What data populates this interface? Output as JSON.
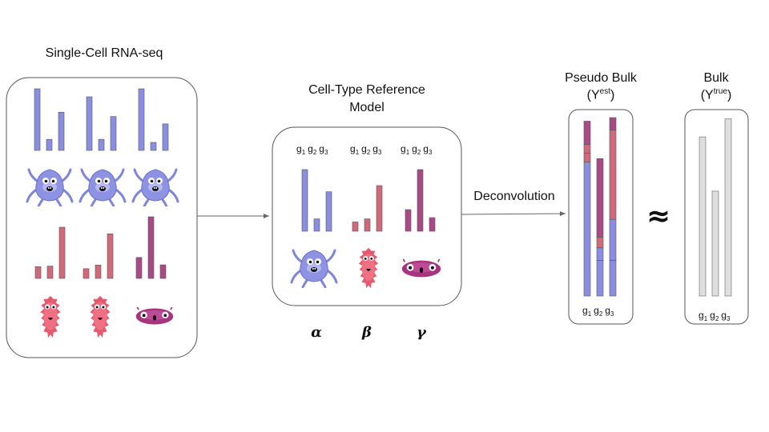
{
  "single_cell": {
    "title": "Single-Cell RNA-seq",
    "rows": [
      {
        "cell_type": "alpha",
        "profiles": [
          [
            1.0,
            0.18,
            0.62
          ],
          [
            0.87,
            0.18,
            0.55
          ],
          [
            1.0,
            0.13,
            0.43
          ]
        ]
      },
      {
        "cell_type": "beta",
        "profiles": [
          [
            0.23,
            0.24,
            1.0
          ],
          [
            0.19,
            0.26,
            0.87
          ]
        ]
      },
      {
        "cell_type": "gamma",
        "profiles": [
          [
            0.34,
            1.0,
            0.22
          ]
        ]
      }
    ],
    "cells": [
      "blue-monster",
      "blue-monster",
      "blue-monster",
      "red-monster",
      "red-monster",
      "purple-monster"
    ]
  },
  "reference": {
    "title_line1": "Cell-Type Reference",
    "title_line2": "Model",
    "gene_header": {
      "g": "g",
      "subs": [
        "1",
        "2",
        "3"
      ]
    },
    "types": [
      {
        "symbol": "α",
        "icon": "blue-monster",
        "color": "#8a8ee0",
        "values": [
          1.0,
          0.2,
          0.64
        ]
      },
      {
        "symbol": "β",
        "icon": "red-monster",
        "color": "#d06a7a",
        "values": [
          0.15,
          0.2,
          0.74
        ]
      },
      {
        "symbol": "γ",
        "icon": "purple-monster",
        "color": "#a84a88",
        "values": [
          0.35,
          1.0,
          0.22
        ]
      }
    ]
  },
  "arrow_label": "Deconvolution",
  "pseudo_bulk": {
    "title": "Pseudo Bulk",
    "sub_prefix": "(Y",
    "sub_sup": "est",
    "sub_suffix": ")",
    "segment_colors": {
      "alpha": "#8a8ee0",
      "beta": "#d06a7a",
      "gamma": "#a84a88"
    },
    "columns": [
      [
        {
          "type": "alpha",
          "value": 0.75
        },
        {
          "type": "beta",
          "value": 0.05
        },
        {
          "type": "beta",
          "value": 0.05
        },
        {
          "type": "gamma",
          "value": 0.13
        }
      ],
      [
        {
          "type": "alpha",
          "value": 0.2
        },
        {
          "type": "alpha",
          "value": 0.07
        },
        {
          "type": "beta",
          "value": 0.06
        },
        {
          "type": "gamma",
          "value": 0.44
        }
      ],
      [
        {
          "type": "alpha",
          "value": 0.2
        },
        {
          "type": "alpha",
          "value": 0.23
        },
        {
          "type": "beta",
          "value": 0.5
        },
        {
          "type": "gamma",
          "value": 0.07
        }
      ]
    ],
    "gene_footer": {
      "g": "g",
      "subs": [
        "1",
        "2",
        "3"
      ]
    }
  },
  "approx_symbol": "≈",
  "bulk": {
    "title": "Bulk",
    "sub_prefix": "(Y",
    "sub_sup": "true",
    "sub_suffix": ")",
    "values": [
      0.88,
      0.58,
      0.98
    ],
    "bar_color": "#dedede",
    "gene_footer": {
      "g": "g",
      "subs": [
        "1",
        "2",
        "3"
      ]
    }
  }
}
